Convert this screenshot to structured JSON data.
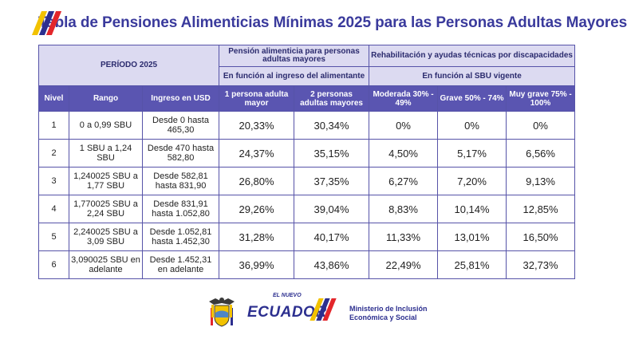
{
  "header": {
    "title": "Tabla de Pensiones Alimenticias Mínimas 2025 para las Personas Adultas Mayores"
  },
  "table": {
    "periodo_label": "PERÍODO 2025",
    "pension_group": "Pensión alimenticia para personas adultas mayores",
    "pension_sub": "En función al ingreso del  alimentante",
    "rehab_group": "Rehabilitación y ayudas técnicas por discapacidades",
    "rehab_sub": "En función al SBU vigente",
    "columns": [
      "Nivel",
      "Rango",
      "Ingreso en USD",
      "1 persona adulta mayor",
      "2 personas adultas mayores",
      "Moderada 30% - 49%",
      "Grave 50% - 74%",
      "Muy grave 75% - 100%"
    ],
    "rows": [
      {
        "nivel": "1",
        "rango": "0 a 0,99 SBU",
        "ingreso": "Desde 0 hasta 465,30",
        "p1": "20,33%",
        "p2": "30,34%",
        "mod": "0%",
        "grave": "0%",
        "muygrave": "0%"
      },
      {
        "nivel": "2",
        "rango": "1 SBU a 1,24 SBU",
        "ingreso": "Desde 470 hasta 582,80",
        "p1": "24,37%",
        "p2": "35,15%",
        "mod": "4,50%",
        "grave": "5,17%",
        "muygrave": "6,56%"
      },
      {
        "nivel": "3",
        "rango": "1,240025 SBU a 1,77 SBU",
        "ingreso": "Desde 582,81 hasta 831,90",
        "p1": "26,80%",
        "p2": "37,35%",
        "mod": "6,27%",
        "grave": "7,20%",
        "muygrave": "9,13%"
      },
      {
        "nivel": "4",
        "rango": "1,770025 SBU a 2,24 SBU",
        "ingreso": "Desde 831,91 hasta 1.052,80",
        "p1": "29,26%",
        "p2": "39,04%",
        "mod": "8,83%",
        "grave": "10,14%",
        "muygrave": "12,85%"
      },
      {
        "nivel": "5",
        "rango": "2,240025 SBU a 3,09 SBU",
        "ingreso": "Desde 1.052,81 hasta 1.452,30",
        "p1": "31,28%",
        "p2": "40,17%",
        "mod": "11,33%",
        "grave": "13,01%",
        "muygrave": "16,50%"
      },
      {
        "nivel": "6",
        "rango": "3,090025 SBU en adelante",
        "ingreso": "Desde 1.452,31 en adelante",
        "p1": "36,99%",
        "p2": "43,86%",
        "mod": "22,49%",
        "grave": "25,81%",
        "muygrave": "32,73%"
      }
    ]
  },
  "footer": {
    "slogan": "EL NUEVO",
    "country": "ECUADOR",
    "ministry": "Ministerio de Inclusión Económica y Social"
  },
  "colors": {
    "title": "#3a3a9c",
    "header_bg": "#5a55b1",
    "light_header_bg": "#dcdaf1",
    "border": "#5653a8",
    "flag_yellow": "#f2c200",
    "flag_blue": "#2c2f8f",
    "flag_red": "#e3262b"
  }
}
